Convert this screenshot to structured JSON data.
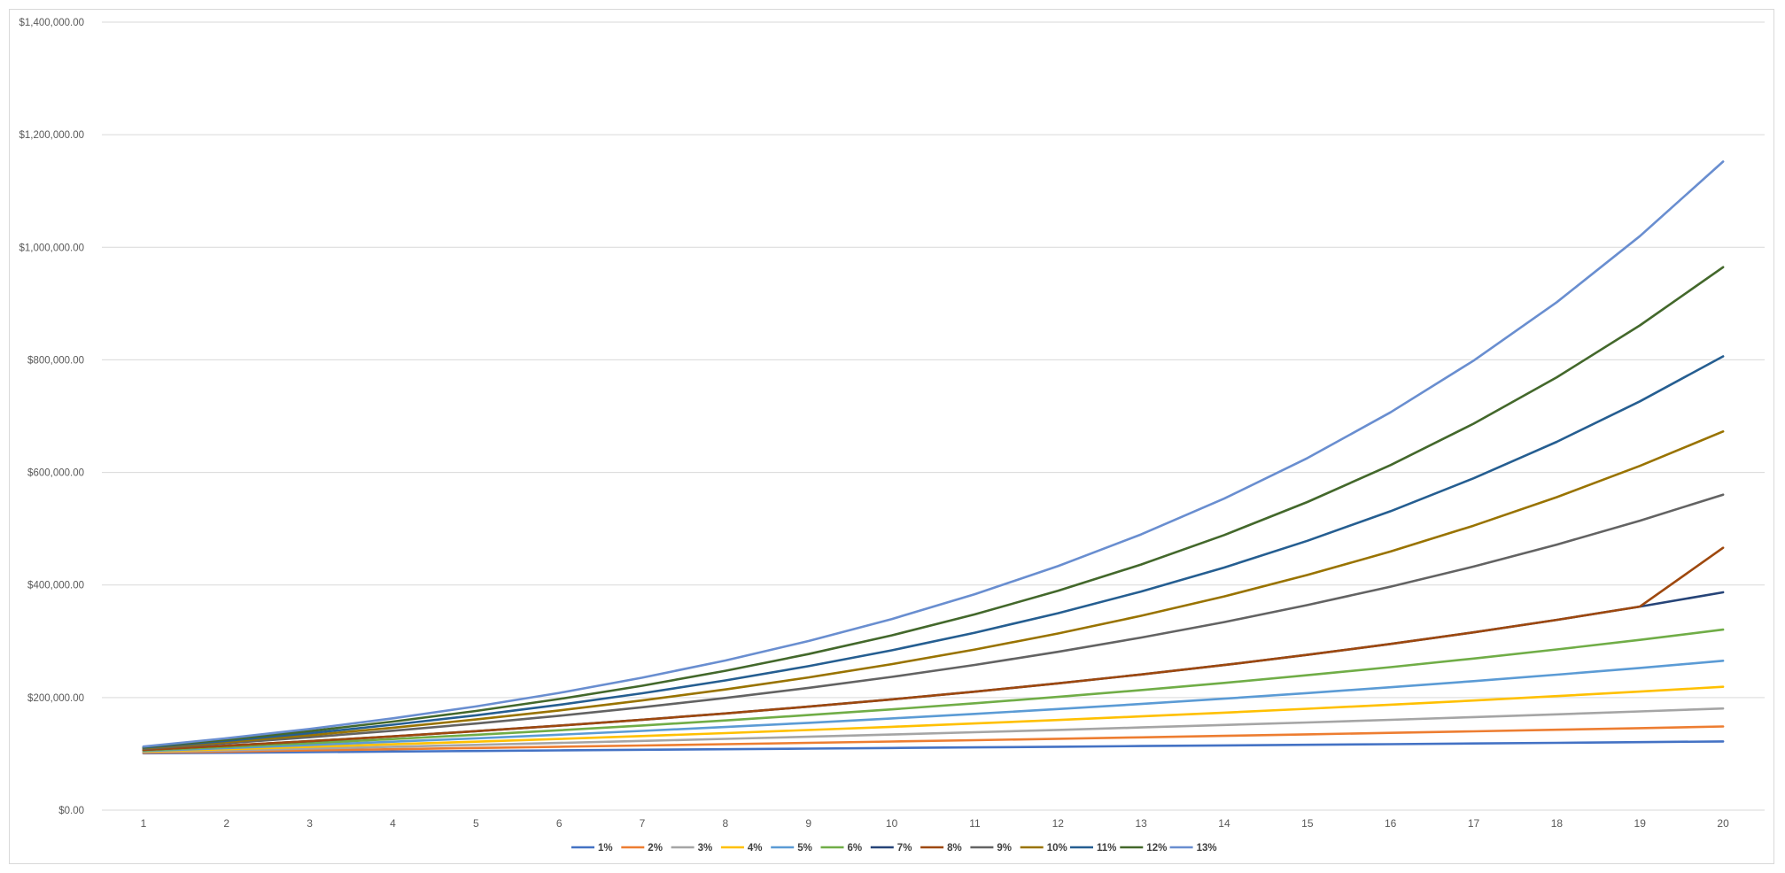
{
  "chart_data": {
    "type": "line",
    "title": "",
    "xlabel": "",
    "ylabel": "",
    "x": [
      1,
      2,
      3,
      4,
      5,
      6,
      7,
      8,
      9,
      10,
      11,
      12,
      13,
      14,
      15,
      16,
      17,
      18,
      19,
      20
    ],
    "ylim": [
      0,
      1400000
    ],
    "ytick_values": [
      0,
      200000,
      400000,
      600000,
      800000,
      1000000,
      1200000,
      1400000
    ],
    "ytick_labels": [
      "$0.00",
      "$200,000.00",
      "$400,000.00",
      "$600,000.00",
      "$800,000.00",
      "$1,000,000.00",
      "$1,200,000.00",
      "$1,400,000.00"
    ],
    "grid": "horizontal",
    "legend_position": "bottom",
    "series": [
      {
        "name": "1%",
        "color": "#4472c4",
        "values": [
          101000,
          102010,
          103030,
          104060,
          105101,
          106152,
          107214,
          108286,
          109369,
          110462,
          111567,
          112683,
          113809,
          114947,
          116097,
          117258,
          118430,
          119615,
          120811,
          122019
        ]
      },
      {
        "name": "2%",
        "color": "#ed7d31",
        "values": [
          102000,
          104040,
          106121,
          108243,
          110408,
          112616,
          114869,
          117166,
          119509,
          121899,
          124337,
          126824,
          129361,
          131948,
          134587,
          137279,
          140024,
          142825,
          145681,
          148595
        ]
      },
      {
        "name": "3%",
        "color": "#a5a5a5",
        "values": [
          103000,
          106090,
          109273,
          112551,
          115927,
          119405,
          122987,
          126677,
          130477,
          134392,
          138423,
          142576,
          146853,
          151259,
          155797,
          160471,
          165285,
          170243,
          175351,
          180611
        ]
      },
      {
        "name": "4%",
        "color": "#ffc000",
        "values": [
          104000,
          108160,
          112486,
          116986,
          121665,
          126532,
          131593,
          136857,
          142331,
          148024,
          153945,
          160103,
          166507,
          173168,
          180094,
          187298,
          194790,
          202582,
          210685,
          219112
        ]
      },
      {
        "name": "5%",
        "color": "#5b9bd5",
        "values": [
          105000,
          110250,
          115763,
          121551,
          127628,
          134010,
          140710,
          147746,
          155133,
          162889,
          171034,
          179586,
          188565,
          197993,
          207893,
          218287,
          229202,
          240662,
          252695,
          265330
        ]
      },
      {
        "name": "6%",
        "color": "#70ad47",
        "values": [
          106000,
          112360,
          119102,
          126248,
          133823,
          141852,
          150363,
          159385,
          168948,
          179085,
          189830,
          201220,
          213293,
          226090,
          239656,
          254035,
          269277,
          285434,
          302560,
          320714
        ]
      },
      {
        "name": "7%",
        "color": "#264478",
        "values": [
          107000,
          114490,
          122504,
          131080,
          140255,
          150073,
          160578,
          171819,
          183846,
          196715,
          210485,
          225219,
          240985,
          257853,
          275903,
          295216,
          315882,
          337993,
          361653,
          386968
        ]
      },
      {
        "name": "8%",
        "color": "#9e480e",
        "values": [
          107000,
          114490,
          122504,
          131080,
          140255,
          150073,
          160578,
          171819,
          183846,
          196715,
          210485,
          225219,
          240985,
          257853,
          275903,
          295216,
          315882,
          337993,
          361653,
          466096
        ]
      },
      {
        "name": "9%",
        "color": "#636363",
        "values": [
          109000,
          118810,
          129503,
          141158,
          153862,
          167710,
          182804,
          199256,
          217189,
          236736,
          258043,
          281266,
          306580,
          334173,
          364248,
          397031,
          432763,
          471712,
          514166,
          560441
        ]
      },
      {
        "name": "10%",
        "color": "#997300",
        "values": [
          110000,
          121000,
          133100,
          146410,
          161051,
          177156,
          194872,
          214359,
          235795,
          259374,
          285312,
          313843,
          345227,
          379750,
          417725,
          459497,
          505447,
          555992,
          611591,
          672750
        ]
      },
      {
        "name": "11%",
        "color": "#255e91",
        "values": [
          111000,
          123210,
          136763,
          151807,
          168506,
          187041,
          207616,
          230454,
          255804,
          283942,
          315176,
          349845,
          388328,
          431044,
          478459,
          531089,
          589509,
          654355,
          726334,
          806231
        ]
      },
      {
        "name": "12%",
        "color": "#43682b",
        "values": [
          112000,
          125440,
          140493,
          157352,
          176234,
          197382,
          221068,
          247596,
          277308,
          310585,
          347855,
          389598,
          436349,
          488711,
          547357,
          613039,
          686604,
          768997,
          861276,
          964629
        ]
      },
      {
        "name": "13%",
        "color": "#698ed0",
        "values": [
          113000,
          127690,
          144290,
          163047,
          184244,
          208195,
          235261,
          265844,
          300404,
          339457,
          383586,
          433452,
          489801,
          553475,
          625427,
          706733,
          798608,
          902427,
          1019742,
          1152309
        ]
      }
    ]
  }
}
